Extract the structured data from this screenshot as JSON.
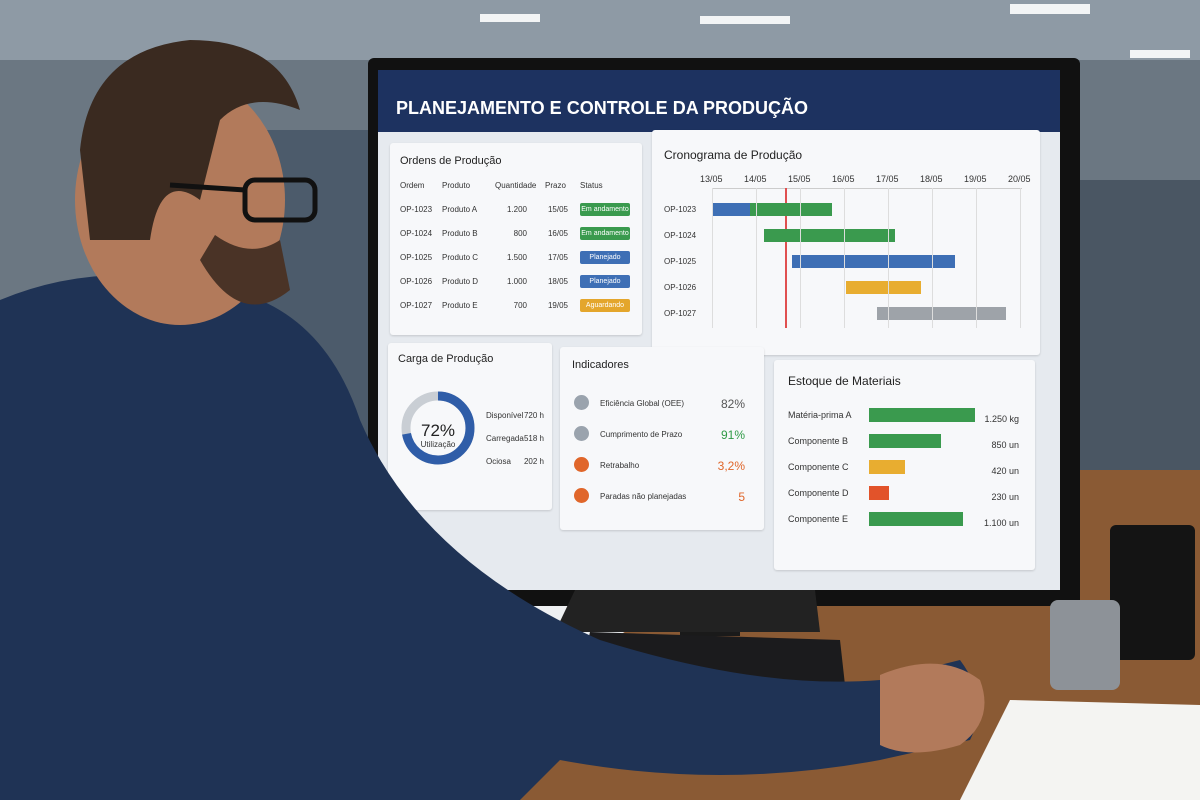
{
  "header": {
    "title": "PLANEJAMENTO E CONTROLE DA PRODUÇÃO"
  },
  "orders": {
    "title": "Ordens de Produção",
    "columns": [
      "Ordem",
      "Produto",
      "Quantidade",
      "Prazo",
      "Status"
    ],
    "rows": [
      {
        "order": "OP-1023",
        "product": "Produto A",
        "quantity": "1.200",
        "due": "15/05",
        "status": "Em andamento",
        "color": "#3a9a4e"
      },
      {
        "order": "OP-1024",
        "product": "Produto B",
        "quantity": "800",
        "due": "16/05",
        "status": "Em andamento",
        "color": "#3a9a4e"
      },
      {
        "order": "OP-1025",
        "product": "Produto C",
        "quantity": "1.500",
        "due": "17/05",
        "status": "Planejado",
        "color": "#3e6fb5"
      },
      {
        "order": "OP-1026",
        "product": "Produto D",
        "quantity": "1.000",
        "due": "18/05",
        "status": "Planejado",
        "color": "#3e6fb5"
      },
      {
        "order": "OP-1027",
        "product": "Produto E",
        "quantity": "700",
        "due": "19/05",
        "status": "Aguardando",
        "color": "#e4a62c"
      }
    ]
  },
  "schedule": {
    "title": "Cronograma de Produção",
    "dates": [
      "13/05",
      "14/05",
      "15/05",
      "16/05",
      "17/05",
      "18/05",
      "19/05",
      "20/05"
    ],
    "orders": [
      "OP-1023",
      "OP-1024",
      "OP-1025",
      "OP-1026",
      "OP-1027"
    ]
  },
  "load": {
    "title": "Carga de Produção",
    "utilization": {
      "value": 72,
      "label": "72%"
    },
    "caption": "Utilização",
    "rows": [
      [
        "Disponível",
        "720 h"
      ],
      [
        "Carregada",
        "518 h"
      ],
      [
        "Ociosa",
        "202 h"
      ]
    ]
  },
  "indicators": {
    "title": "Indicadores",
    "items": [
      {
        "label": "Eficiência Global (OEE)",
        "value": "82%",
        "color": "#555"
      },
      {
        "label": "Cumprimento de Prazo",
        "value": "91%",
        "color": "#2e9a45"
      },
      {
        "label": "Retrabalho",
        "value": "3,2%",
        "color": "#e0662a"
      },
      {
        "label": "Paradas não planejadas",
        "value": "5",
        "color": "#e0662a"
      }
    ]
  },
  "stock": {
    "title": "Estoque de Materiais",
    "items": [
      {
        "name": "Matéria-prima A",
        "value": 1250,
        "label": "1.250 kg",
        "color": "#3a9a4e"
      },
      {
        "name": "Componente B",
        "value": 850,
        "label": "850 un",
        "color": "#3a9a4e"
      },
      {
        "name": "Componente C",
        "value": 420,
        "label": "420 un",
        "color": "#e8ad30"
      },
      {
        "name": "Componente D",
        "value": 230,
        "label": "230 un",
        "color": "#e2532a"
      },
      {
        "name": "Componente E",
        "value": 1100,
        "label": "1.100 un",
        "color": "#3a9a4e"
      }
    ]
  }
}
